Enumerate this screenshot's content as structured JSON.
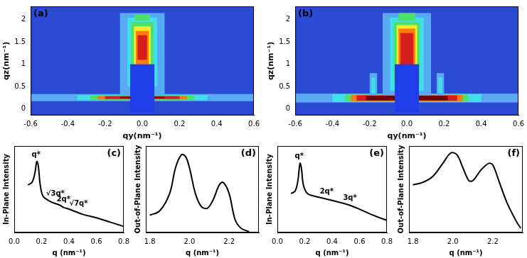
{
  "chart_data": [
    {
      "type": "heatmap",
      "panel_label": "(a)",
      "x_label": "qy(nm⁻¹)",
      "y_label": "qz(nm⁻¹)",
      "xlim": [
        -0.6,
        0.6
      ],
      "ylim": [
        -0.15,
        2.3
      ],
      "xticks": [
        -0.6,
        -0.4,
        -0.2,
        {
          "value": 0,
          "label": "0.0"
        },
        0.2,
        0.4,
        0.6
      ],
      "yticks": [
        0,
        0.5,
        1,
        1.5,
        2
      ],
      "grid": false,
      "cells": [
        [
          -0.6,
          0.6,
          -0.15,
          2.3,
          1
        ],
        [
          -0.6,
          0.6,
          0.17,
          0.33,
          2
        ],
        [
          -0.35,
          0.35,
          0.19,
          0.31,
          3
        ],
        [
          -0.28,
          0.28,
          0.2,
          0.3,
          4
        ],
        [
          -0.24,
          0.24,
          0.21,
          0.29,
          6
        ],
        [
          -0.2,
          0.2,
          0.22,
          0.28,
          7
        ],
        [
          -0.12,
          0.12,
          0.23,
          0.27,
          8
        ],
        [
          -0.12,
          0.12,
          0.3,
          2.15,
          2
        ],
        [
          -0.08,
          0.08,
          0.5,
          2.05,
          3
        ],
        [
          -0.06,
          0.06,
          0.7,
          1.95,
          4
        ],
        [
          -0.045,
          0.045,
          0.9,
          1.85,
          5
        ],
        [
          -0.035,
          0.035,
          1.0,
          1.75,
          6
        ],
        [
          -0.025,
          0.025,
          1.1,
          1.65,
          7
        ],
        [
          -0.04,
          0.04,
          1.98,
          2.12,
          4
        ],
        [
          -0.065,
          0.065,
          -0.08,
          1.0,
          0
        ]
      ]
    },
    {
      "type": "heatmap",
      "panel_label": "(b)",
      "x_label": "qy(nm⁻¹)",
      "y_label": "qz(nm⁻¹)",
      "xlim": [
        -0.6,
        0.6
      ],
      "ylim": [
        -0.15,
        2.3
      ],
      "xticks": [
        -0.6,
        -0.4,
        -0.2,
        {
          "value": 0,
          "label": "0.0"
        },
        0.2,
        0.4,
        0.6
      ],
      "yticks": [
        0,
        0.5,
        1,
        1.5,
        2
      ],
      "grid": false,
      "cells": [
        [
          -0.6,
          0.6,
          -0.15,
          2.3,
          1
        ],
        [
          -0.6,
          0.6,
          0.14,
          0.34,
          2
        ],
        [
          -0.4,
          0.4,
          0.15,
          0.33,
          3
        ],
        [
          -0.33,
          0.33,
          0.16,
          0.32,
          4
        ],
        [
          -0.3,
          0.3,
          0.17,
          0.31,
          6
        ],
        [
          -0.27,
          0.27,
          0.18,
          0.3,
          7
        ],
        [
          -0.22,
          0.22,
          0.19,
          0.29,
          8
        ],
        [
          -0.2,
          -0.16,
          0.3,
          0.8,
          2
        ],
        [
          -0.19,
          -0.17,
          0.35,
          0.7,
          3
        ],
        [
          0.16,
          0.2,
          0.3,
          0.8,
          2
        ],
        [
          0.17,
          0.19,
          0.35,
          0.7,
          3
        ],
        [
          -0.13,
          0.13,
          0.3,
          2.15,
          2
        ],
        [
          -0.09,
          0.09,
          0.4,
          2.05,
          3
        ],
        [
          -0.07,
          0.07,
          0.55,
          1.95,
          4
        ],
        [
          -0.055,
          0.055,
          0.7,
          1.88,
          5
        ],
        [
          -0.045,
          0.045,
          0.8,
          1.8,
          6
        ],
        [
          -0.035,
          0.035,
          0.9,
          1.7,
          7
        ],
        [
          -0.045,
          0.045,
          1.98,
          2.15,
          4
        ],
        [
          -0.065,
          0.065,
          -0.08,
          1.0,
          0
        ]
      ]
    },
    {
      "type": "line",
      "panel_label": "(c)",
      "x_label": "q (nm⁻¹)",
      "y_label": "In-Plane Intensity",
      "xlim": [
        0.0,
        0.8
      ],
      "ylim": [
        0,
        100
      ],
      "xticks": [
        {
          "value": 0,
          "label": "0.0"
        },
        0.2,
        0.4,
        0.6,
        0.8
      ],
      "tick_labels": "x",
      "grid": false,
      "color": "#000000",
      "x": [
        0.1,
        0.13,
        0.15,
        0.165,
        0.175,
        0.19,
        0.21,
        0.25,
        0.29,
        0.31,
        0.34,
        0.36,
        0.4,
        0.45,
        0.5,
        0.6,
        0.7,
        0.8
      ],
      "values": [
        55,
        58,
        68,
        82,
        78,
        55,
        42,
        37,
        34,
        33,
        31,
        29,
        27,
        24,
        21,
        17,
        12,
        7
      ],
      "annotations": [
        {
          "text": "q*",
          "x": 0.16,
          "y": 90
        },
        {
          "text": "√3q*",
          "x": 0.3,
          "y": 45
        },
        {
          "text": "2q*",
          "x": 0.36,
          "y": 38
        },
        {
          "text": "√7q*",
          "x": 0.47,
          "y": 33
        }
      ]
    },
    {
      "type": "line",
      "panel_label": "(d)",
      "x_label": "q (nm⁻¹)",
      "y_label": "Out-of-Plane Intensity",
      "xlim": [
        1.78,
        2.35
      ],
      "ylim": [
        0,
        100
      ],
      "xticks": [
        1.8,
        {
          "value": 2,
          "label": "2.0"
        },
        2.2
      ],
      "tick_labels": "x",
      "grid": false,
      "color": "#000000",
      "x": [
        1.8,
        1.85,
        1.9,
        1.93,
        1.96,
        1.98,
        2.0,
        2.03,
        2.06,
        2.09,
        2.12,
        2.15,
        2.17,
        2.2,
        2.23,
        2.26,
        2.3
      ],
      "values": [
        20,
        25,
        45,
        75,
        90,
        88,
        75,
        45,
        30,
        28,
        38,
        55,
        58,
        45,
        15,
        5,
        1
      ]
    },
    {
      "type": "line",
      "panel_label": "(e)",
      "x_label": "q (nm⁻¹)",
      "y_label": "In-Plane Intensity",
      "xlim": [
        0.0,
        0.8
      ],
      "ylim": [
        0,
        100
      ],
      "xticks": [
        {
          "value": 0,
          "label": "0.0"
        },
        0.2,
        0.4,
        0.6,
        0.8
      ],
      "tick_labels": "x",
      "grid": false,
      "color": "#000000",
      "x": [
        0.1,
        0.13,
        0.15,
        0.165,
        0.175,
        0.19,
        0.22,
        0.27,
        0.35,
        0.45,
        0.52,
        0.6,
        0.7,
        0.8
      ],
      "values": [
        45,
        48,
        60,
        80,
        75,
        55,
        45,
        42,
        39,
        35,
        32,
        27,
        20,
        14
      ],
      "annotations": [
        {
          "text": "q*",
          "x": 0.16,
          "y": 88
        },
        {
          "text": "2q*",
          "x": 0.36,
          "y": 47
        },
        {
          "text": "3q*",
          "x": 0.53,
          "y": 40
        }
      ]
    },
    {
      "type": "line",
      "panel_label": "(f)",
      "x_label": "q (nm⁻¹)",
      "y_label": "Out-of-Plane Intensity",
      "xlim": [
        1.78,
        2.35
      ],
      "ylim": [
        0,
        100
      ],
      "xticks": [
        1.8,
        {
          "value": 2,
          "label": "2.0"
        },
        2.2
      ],
      "tick_labels": "x",
      "grid": false,
      "color": "#000000",
      "x": [
        1.8,
        1.85,
        1.9,
        1.95,
        1.99,
        2.02,
        2.05,
        2.08,
        2.1,
        2.14,
        2.18,
        2.2,
        2.23,
        2.27,
        2.32,
        2.34
      ],
      "values": [
        55,
        58,
        65,
        80,
        92,
        90,
        75,
        60,
        60,
        72,
        80,
        78,
        60,
        35,
        12,
        5
      ]
    }
  ]
}
